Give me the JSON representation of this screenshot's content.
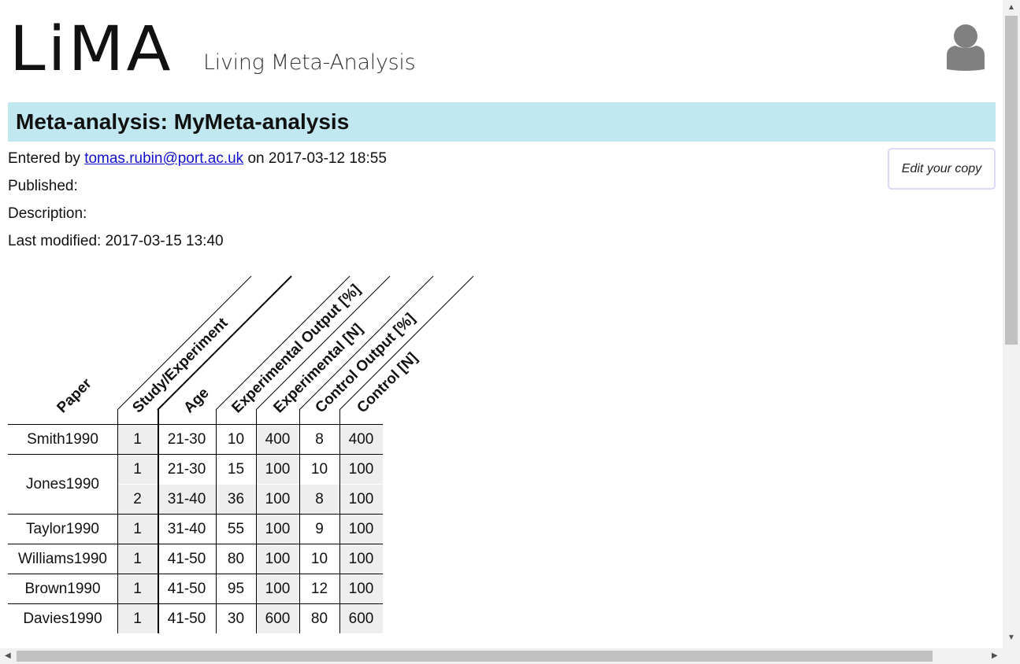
{
  "header": {
    "logo": "LiMA",
    "tagline": "Living Meta-Analysis"
  },
  "title": "Meta-analysis: MyMeta-analysis",
  "meta": {
    "entered_by_prefix": "Entered by",
    "entered_by_email": "tomas.rubin@port.ac.uk",
    "entered_on": "on 2017-03-12 18:55",
    "published": "Published:",
    "description": "Description:",
    "last_modified": "Last modified: 2017-03-15 13:40"
  },
  "edit_button": "Edit your copy",
  "table": {
    "columns": [
      "Paper",
      "Study/Experiment",
      "Age",
      "Experimental Output [%]",
      "Experimental [N]",
      "Control Output [%]",
      "Control [N]"
    ],
    "rows": [
      {
        "paper": "Smith1990",
        "study": "1",
        "age": "21-30",
        "exp_out": "10",
        "exp_n": "400",
        "ctrl_out": "8",
        "ctrl_n": "400"
      },
      {
        "paper": "Jones1990",
        "study": "1",
        "age": "21-30",
        "exp_out": "15",
        "exp_n": "100",
        "ctrl_out": "10",
        "ctrl_n": "100"
      },
      {
        "paper": "",
        "study": "2",
        "age": "31-40",
        "exp_out": "36",
        "exp_n": "100",
        "ctrl_out": "8",
        "ctrl_n": "100"
      },
      {
        "paper": "Taylor1990",
        "study": "1",
        "age": "31-40",
        "exp_out": "55",
        "exp_n": "100",
        "ctrl_out": "9",
        "ctrl_n": "100"
      },
      {
        "paper": "Williams1990",
        "study": "1",
        "age": "41-50",
        "exp_out": "80",
        "exp_n": "100",
        "ctrl_out": "10",
        "ctrl_n": "100"
      },
      {
        "paper": "Brown1990",
        "study": "1",
        "age": "41-50",
        "exp_out": "95",
        "exp_n": "100",
        "ctrl_out": "12",
        "ctrl_n": "100"
      },
      {
        "paper": "Davies1990",
        "study": "1",
        "age": "41-50",
        "exp_out": "30",
        "exp_n": "600",
        "ctrl_out": "80",
        "ctrl_n": "600"
      }
    ]
  },
  "icons": {
    "avatar": "user-avatar-icon",
    "scroll_up": "arrow-up-icon",
    "scroll_down": "arrow-down-icon",
    "scroll_left": "arrow-left-icon",
    "scroll_right": "arrow-right-icon"
  },
  "colors": {
    "title_bar": "#c1e8f0",
    "link": "#1111cc",
    "shaded_cell": "#eeeeee",
    "avatar": "#808080"
  }
}
